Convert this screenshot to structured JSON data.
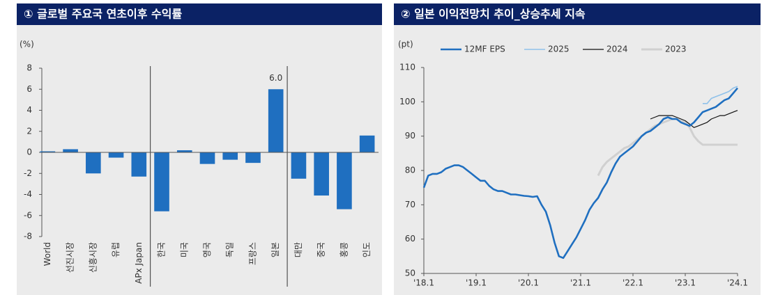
{
  "chart_data": [
    {
      "type": "bar",
      "title": "① 글로벌 주요국 연초이후 수익률",
      "y_unit": "(%)",
      "categories": [
        "World",
        "선진시장",
        "신흥시장",
        "유럽",
        "APx Japan",
        "한국",
        "미국",
        "영국",
        "독일",
        "프랑스",
        "일본",
        "대만",
        "중국",
        "홍콩",
        "인도"
      ],
      "values": [
        0.1,
        0.3,
        -2.0,
        -0.5,
        -2.3,
        -5.6,
        0.2,
        -1.1,
        -0.7,
        -1.0,
        6.0,
        -2.5,
        -4.1,
        -5.4,
        1.6
      ],
      "value_labels": [
        null,
        null,
        null,
        null,
        null,
        null,
        null,
        null,
        null,
        null,
        "6.0",
        null,
        null,
        null,
        null
      ],
      "color": "#1f6fc0",
      "ylim": [
        -8,
        8
      ],
      "yticks": [
        -8,
        -6,
        -4,
        -2,
        0,
        2,
        4,
        6,
        8
      ]
    },
    {
      "type": "line",
      "title": "② 일본 이익전망치 추이_상승추세 지속",
      "y_unit": "(pt)",
      "x": [
        0,
        1,
        2,
        3,
        4,
        5,
        6,
        7,
        8,
        9,
        10,
        11,
        12,
        13,
        14,
        15,
        16,
        17,
        18,
        19,
        20,
        21,
        22,
        23,
        24,
        25,
        26,
        27,
        28,
        29,
        30,
        31,
        32,
        33,
        34,
        35,
        36,
        37,
        38,
        39,
        40,
        41,
        42,
        43,
        44,
        45,
        46,
        47,
        48,
        49,
        50,
        51,
        52,
        53,
        54,
        55,
        56,
        57,
        58,
        59,
        60,
        61,
        62,
        63,
        64,
        65,
        66,
        67,
        68,
        69,
        70,
        71,
        72
      ],
      "xlim": [
        0,
        72
      ],
      "xticks": [
        {
          "value": 0,
          "label": "'18.1"
        },
        {
          "value": 12,
          "label": "'19.1"
        },
        {
          "value": 24,
          "label": "'20.1"
        },
        {
          "value": 36,
          "label": "'21.1"
        },
        {
          "value": 48,
          "label": "'22.1"
        },
        {
          "value": 60,
          "label": "'23.1"
        },
        {
          "value": 72,
          "label": "'24.1"
        }
      ],
      "ylim": [
        50,
        110
      ],
      "yticks": [
        50,
        60,
        70,
        80,
        90,
        100,
        110
      ],
      "series": [
        {
          "name": "12MF EPS",
          "color": "#1f6fc0",
          "values": [
            75,
            78.5,
            79,
            79,
            79.5,
            80.5,
            81,
            81.5,
            81.5,
            81,
            80,
            79,
            78,
            77,
            77,
            75.5,
            74.5,
            74,
            74,
            73.5,
            73,
            73,
            72.8,
            72.6,
            72.5,
            72.3,
            72.5,
            70,
            68,
            64,
            59,
            55,
            54.5,
            56.5,
            58.5,
            60.5,
            63,
            65.5,
            68.5,
            70.5,
            72,
            74.5,
            76.5,
            79.5,
            82,
            84,
            85,
            86,
            87,
            88.5,
            90,
            91,
            91.5,
            92.5,
            93.5,
            95,
            95.5,
            95,
            95,
            94,
            93.5,
            93,
            94,
            95.5,
            97,
            97.5,
            98,
            98.5,
            99.5,
            100.5,
            101,
            102.5,
            104
          ]
        },
        {
          "name": "2025",
          "color": "#8fc1ea",
          "values": [
            null,
            null,
            null,
            null,
            null,
            null,
            null,
            null,
            null,
            null,
            null,
            null,
            null,
            null,
            null,
            null,
            null,
            null,
            null,
            null,
            null,
            null,
            null,
            null,
            null,
            null,
            null,
            null,
            null,
            null,
            null,
            null,
            null,
            null,
            null,
            null,
            null,
            null,
            null,
            null,
            null,
            null,
            null,
            null,
            null,
            null,
            null,
            null,
            null,
            null,
            null,
            null,
            null,
            null,
            null,
            null,
            null,
            null,
            null,
            null,
            null,
            null,
            null,
            null,
            99.5,
            99.5,
            101,
            101.5,
            102,
            102.5,
            103,
            104,
            104.5
          ]
        },
        {
          "name": "2024",
          "color": "#111111",
          "values": [
            null,
            null,
            null,
            null,
            null,
            null,
            null,
            null,
            null,
            null,
            null,
            null,
            null,
            null,
            null,
            null,
            null,
            null,
            null,
            null,
            null,
            null,
            null,
            null,
            null,
            null,
            null,
            null,
            null,
            null,
            null,
            null,
            null,
            null,
            null,
            null,
            null,
            null,
            null,
            null,
            null,
            null,
            null,
            null,
            null,
            null,
            null,
            null,
            null,
            null,
            null,
            null,
            95,
            95.5,
            96,
            96,
            96,
            96,
            95.5,
            95,
            94.5,
            93.5,
            92.5,
            93,
            93.5,
            94,
            95,
            95.5,
            96,
            96,
            96.5,
            97,
            97.5
          ]
        },
        {
          "name": "2023",
          "color": "#d0d0d0",
          "values": [
            null,
            null,
            null,
            null,
            null,
            null,
            null,
            null,
            null,
            null,
            null,
            null,
            null,
            null,
            null,
            null,
            null,
            null,
            null,
            null,
            null,
            null,
            null,
            null,
            null,
            null,
            null,
            null,
            null,
            null,
            null,
            null,
            null,
            null,
            null,
            null,
            null,
            null,
            null,
            null,
            78.5,
            81,
            82.5,
            83.5,
            84.5,
            85.5,
            86.5,
            87,
            88,
            89,
            90,
            91,
            92,
            93,
            93.5,
            94,
            94.5,
            95,
            95,
            94.5,
            94,
            92.5,
            90,
            88.5,
            87.5,
            87.5,
            87.5,
            87.5,
            87.5,
            87.5,
            87.5,
            87.5,
            87.5
          ]
        }
      ]
    }
  ]
}
